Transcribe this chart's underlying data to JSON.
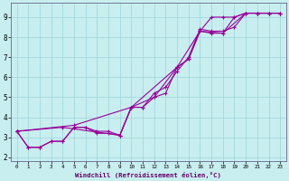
{
  "xlabel": "Windchill (Refroidissement éolien,°C)",
  "bg_color": "#c8eef0",
  "line_color": "#990099",
  "grid_color": "#9ed4d8",
  "xlim": [
    -0.5,
    23.5
  ],
  "ylim": [
    1.8,
    9.7
  ],
  "xticks": [
    0,
    1,
    2,
    3,
    4,
    5,
    6,
    7,
    8,
    9,
    10,
    11,
    12,
    13,
    14,
    15,
    16,
    17,
    18,
    19,
    20,
    21,
    22,
    23
  ],
  "yticks": [
    2,
    3,
    4,
    5,
    6,
    7,
    8,
    9
  ],
  "series": [
    [
      [
        0,
        3.3
      ],
      [
        1,
        2.5
      ],
      [
        2,
        2.5
      ],
      [
        3,
        2.8
      ],
      [
        4,
        2.8
      ],
      [
        5,
        3.5
      ],
      [
        6,
        3.5
      ],
      [
        7,
        3.3
      ],
      [
        8,
        3.3
      ],
      [
        9,
        3.1
      ],
      [
        10,
        4.5
      ],
      [
        11,
        4.5
      ],
      [
        12,
        5.0
      ],
      [
        13,
        5.2
      ],
      [
        14,
        6.5
      ],
      [
        15,
        6.9
      ],
      [
        16,
        8.3
      ],
      [
        17,
        8.2
      ],
      [
        18,
        8.2
      ],
      [
        19,
        9.0
      ],
      [
        20,
        9.2
      ],
      [
        21,
        9.2
      ],
      [
        22,
        9.2
      ],
      [
        23,
        9.2
      ]
    ],
    [
      [
        0,
        3.3
      ],
      [
        1,
        2.5
      ],
      [
        2,
        2.5
      ],
      [
        3,
        2.8
      ],
      [
        4,
        2.8
      ],
      [
        5,
        3.5
      ],
      [
        6,
        3.5
      ],
      [
        7,
        3.2
      ],
      [
        8,
        3.2
      ],
      [
        9,
        3.1
      ],
      [
        10,
        4.5
      ],
      [
        11,
        4.5
      ],
      [
        12,
        5.2
      ],
      [
        13,
        5.5
      ],
      [
        14,
        6.3
      ],
      [
        15,
        7.0
      ],
      [
        16,
        8.4
      ],
      [
        17,
        8.3
      ],
      [
        18,
        8.3
      ],
      [
        19,
        8.5
      ],
      [
        20,
        9.2
      ],
      [
        21,
        9.2
      ],
      [
        22,
        9.2
      ],
      [
        23,
        9.2
      ]
    ],
    [
      [
        0,
        3.3
      ],
      [
        5,
        3.6
      ],
      [
        10,
        4.5
      ],
      [
        14,
        6.5
      ],
      [
        16,
        8.3
      ],
      [
        18,
        8.2
      ],
      [
        20,
        9.2
      ],
      [
        21,
        9.2
      ],
      [
        22,
        9.2
      ],
      [
        23,
        9.2
      ]
    ],
    [
      [
        0,
        3.3
      ],
      [
        4,
        3.5
      ],
      [
        9,
        3.1
      ],
      [
        10,
        4.5
      ],
      [
        12,
        5.0
      ],
      [
        14,
        6.5
      ],
      [
        15,
        6.9
      ],
      [
        16,
        8.3
      ],
      [
        17,
        9.0
      ],
      [
        18,
        9.0
      ],
      [
        19,
        9.0
      ],
      [
        20,
        9.2
      ],
      [
        21,
        9.2
      ],
      [
        22,
        9.2
      ],
      [
        23,
        9.2
      ]
    ]
  ]
}
